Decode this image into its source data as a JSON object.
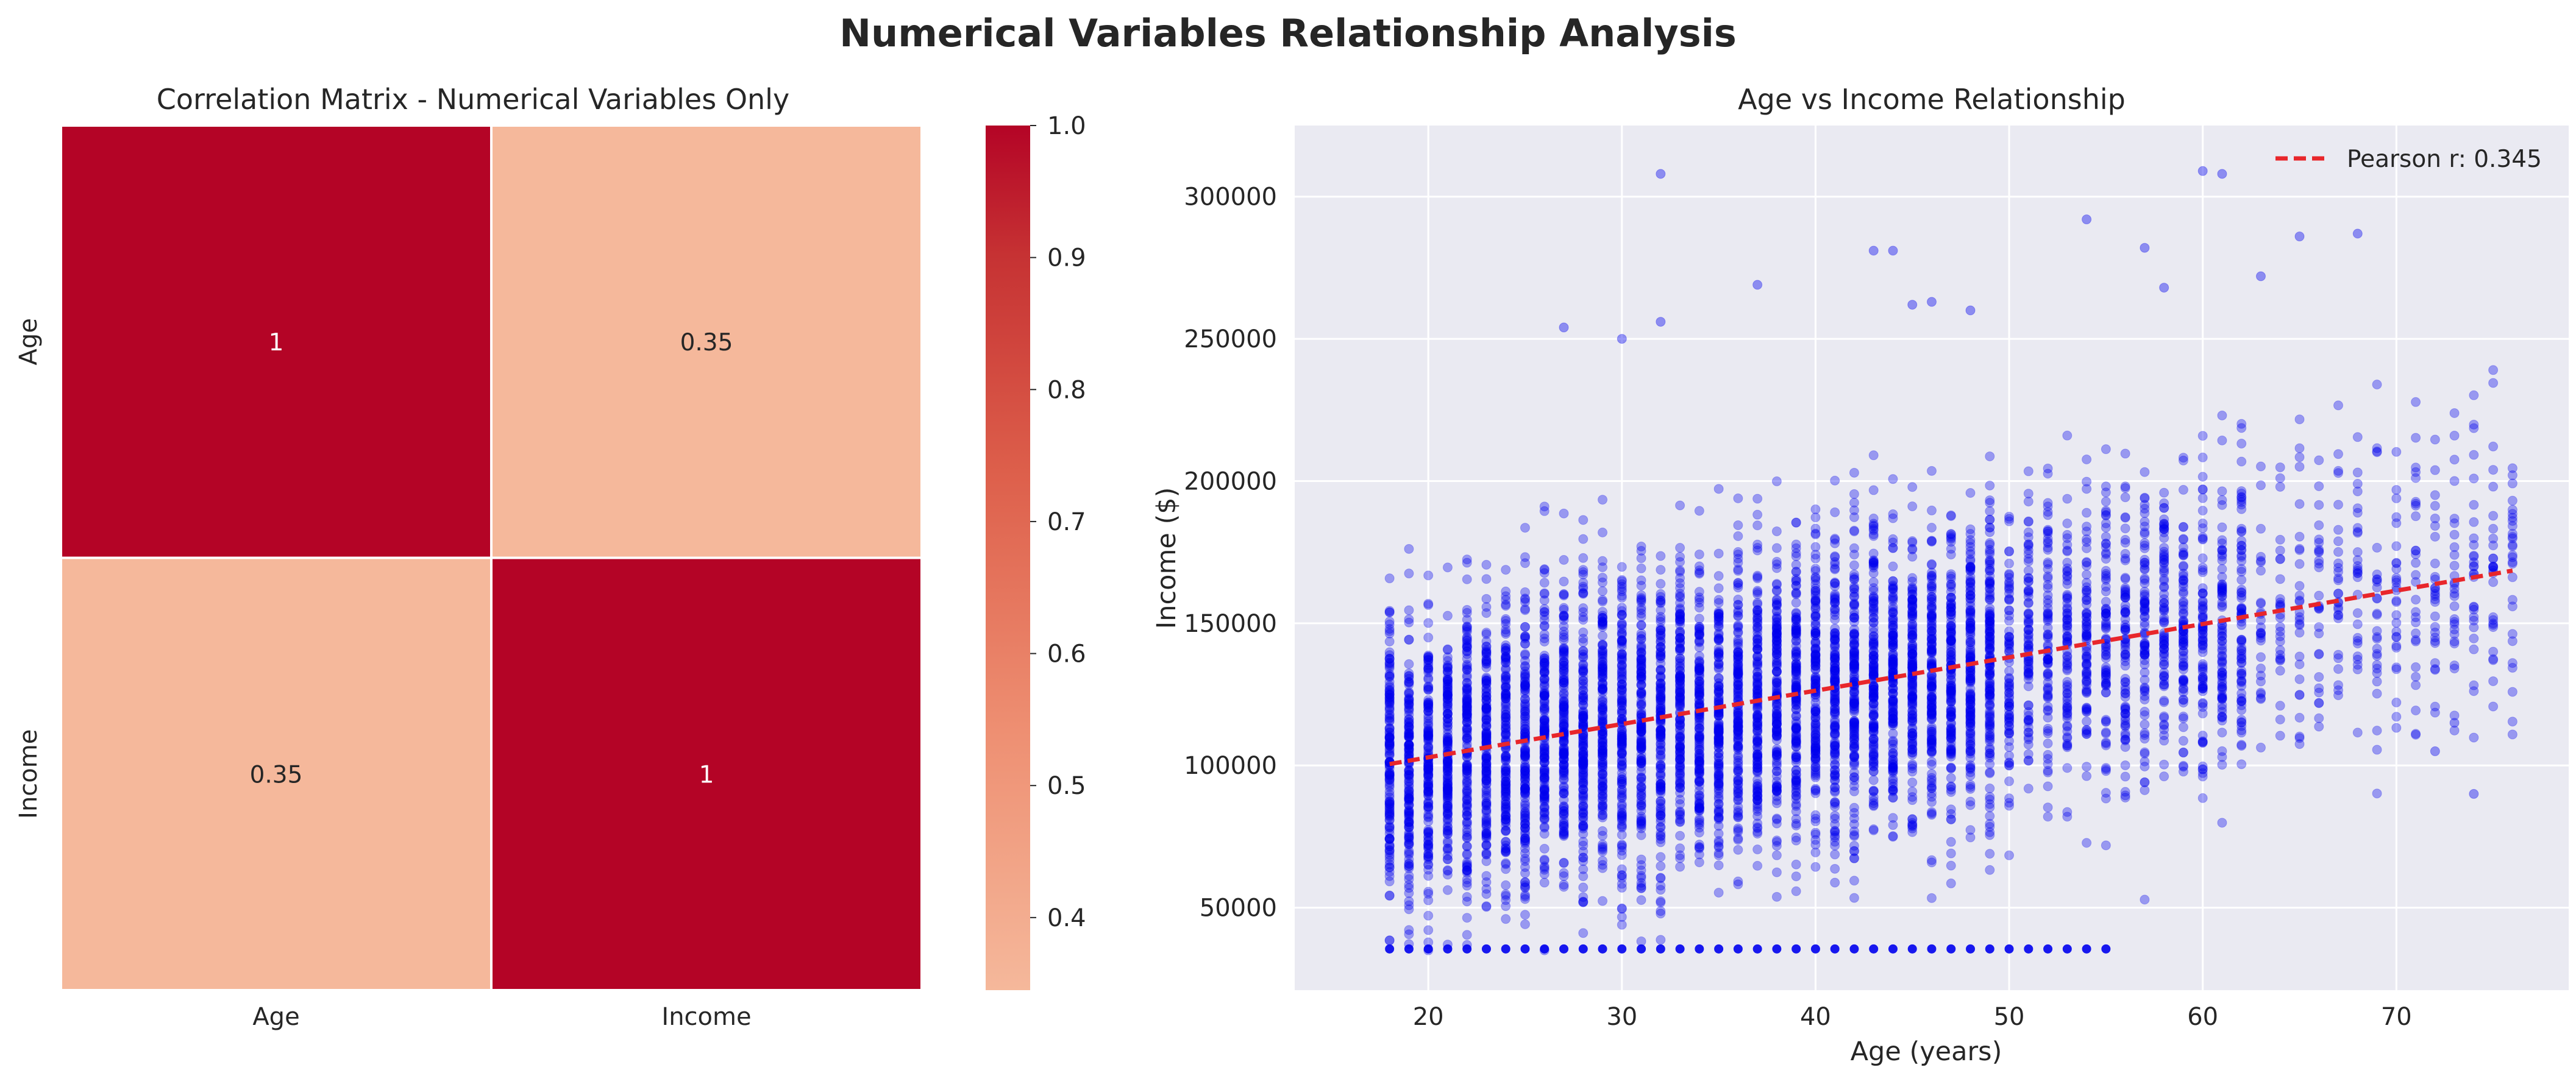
{
  "title": "Numerical Variables Relationship Analysis",
  "chart_data": [
    {
      "type": "heatmap",
      "title": "Correlation Matrix - Numerical Variables Only",
      "rows": [
        "Age",
        "Income"
      ],
      "columns": [
        "Age",
        "Income"
      ],
      "values": [
        [
          1.0,
          0.345
        ],
        [
          0.345,
          1.0
        ]
      ],
      "annotations": [
        [
          "1",
          "0.35"
        ],
        [
          "0.35",
          "1"
        ]
      ],
      "colorbar": {
        "range": [
          0.345,
          1.0
        ],
        "ticks": [
          "0.4",
          "0.5",
          "0.6",
          "0.7",
          "0.8",
          "0.9",
          "1.0"
        ],
        "colormap": "coolwarm (upper half)",
        "low_color": "#f5b89b",
        "high_color": "#b40426"
      }
    },
    {
      "type": "scatter",
      "title": "Age vs Income Relationship",
      "xlabel": "Age (years)",
      "ylabel": "Income ($)",
      "xlim": [
        13.1,
        78.9
      ],
      "ylim": [
        21000,
        325000
      ],
      "xticks": [
        "20",
        "30",
        "40",
        "50",
        "60",
        "70"
      ],
      "yticks": [
        "50000",
        "100000",
        "150000",
        "200000",
        "250000",
        "300000"
      ],
      "grid": true,
      "background": "#eaeaf2",
      "point_color": "#0000ee",
      "series": [
        {
          "name": "",
          "description_bands": [
            {
              "age_from": 18,
              "age_to": 49,
              "income_min": 35000,
              "income_max": 210000,
              "density": "high"
            },
            {
              "age_from": 50,
              "age_to": 62,
              "income_min": 36000,
              "income_max": 225000,
              "density": "medium"
            },
            {
              "age_from": 63,
              "age_to": 76,
              "income_min": 60000,
              "income_max": 245000,
              "density": "low"
            }
          ],
          "outliers": [
            {
              "x": 32,
              "y": 308000
            },
            {
              "x": 43,
              "y": 281000
            },
            {
              "x": 44,
              "y": 281000
            },
            {
              "x": 54,
              "y": 292000
            },
            {
              "x": 57,
              "y": 282000
            },
            {
              "x": 60,
              "y": 309000
            },
            {
              "x": 61,
              "y": 308000
            },
            {
              "x": 65,
              "y": 286000
            },
            {
              "x": 68,
              "y": 287000
            },
            {
              "x": 63,
              "y": 272000
            },
            {
              "x": 58,
              "y": 268000
            },
            {
              "x": 37,
              "y": 269000
            },
            {
              "x": 27,
              "y": 254000
            },
            {
              "x": 32,
              "y": 256000
            },
            {
              "x": 30,
              "y": 250000
            },
            {
              "x": 46,
              "y": 263000
            },
            {
              "x": 45,
              "y": 262000
            },
            {
              "x": 48,
              "y": 260000
            },
            {
              "x": 74,
              "y": 90000
            },
            {
              "x": 73,
              "y": 115000
            },
            {
              "x": 72,
              "y": 105000
            }
          ]
        }
      ],
      "trendline": {
        "label": "Pearson r: 0.345",
        "color": "#e8262b",
        "style": "dashed",
        "x": [
          18,
          76
        ],
        "y": [
          100500,
          168500
        ]
      },
      "legend_position": "top-right"
    }
  ]
}
